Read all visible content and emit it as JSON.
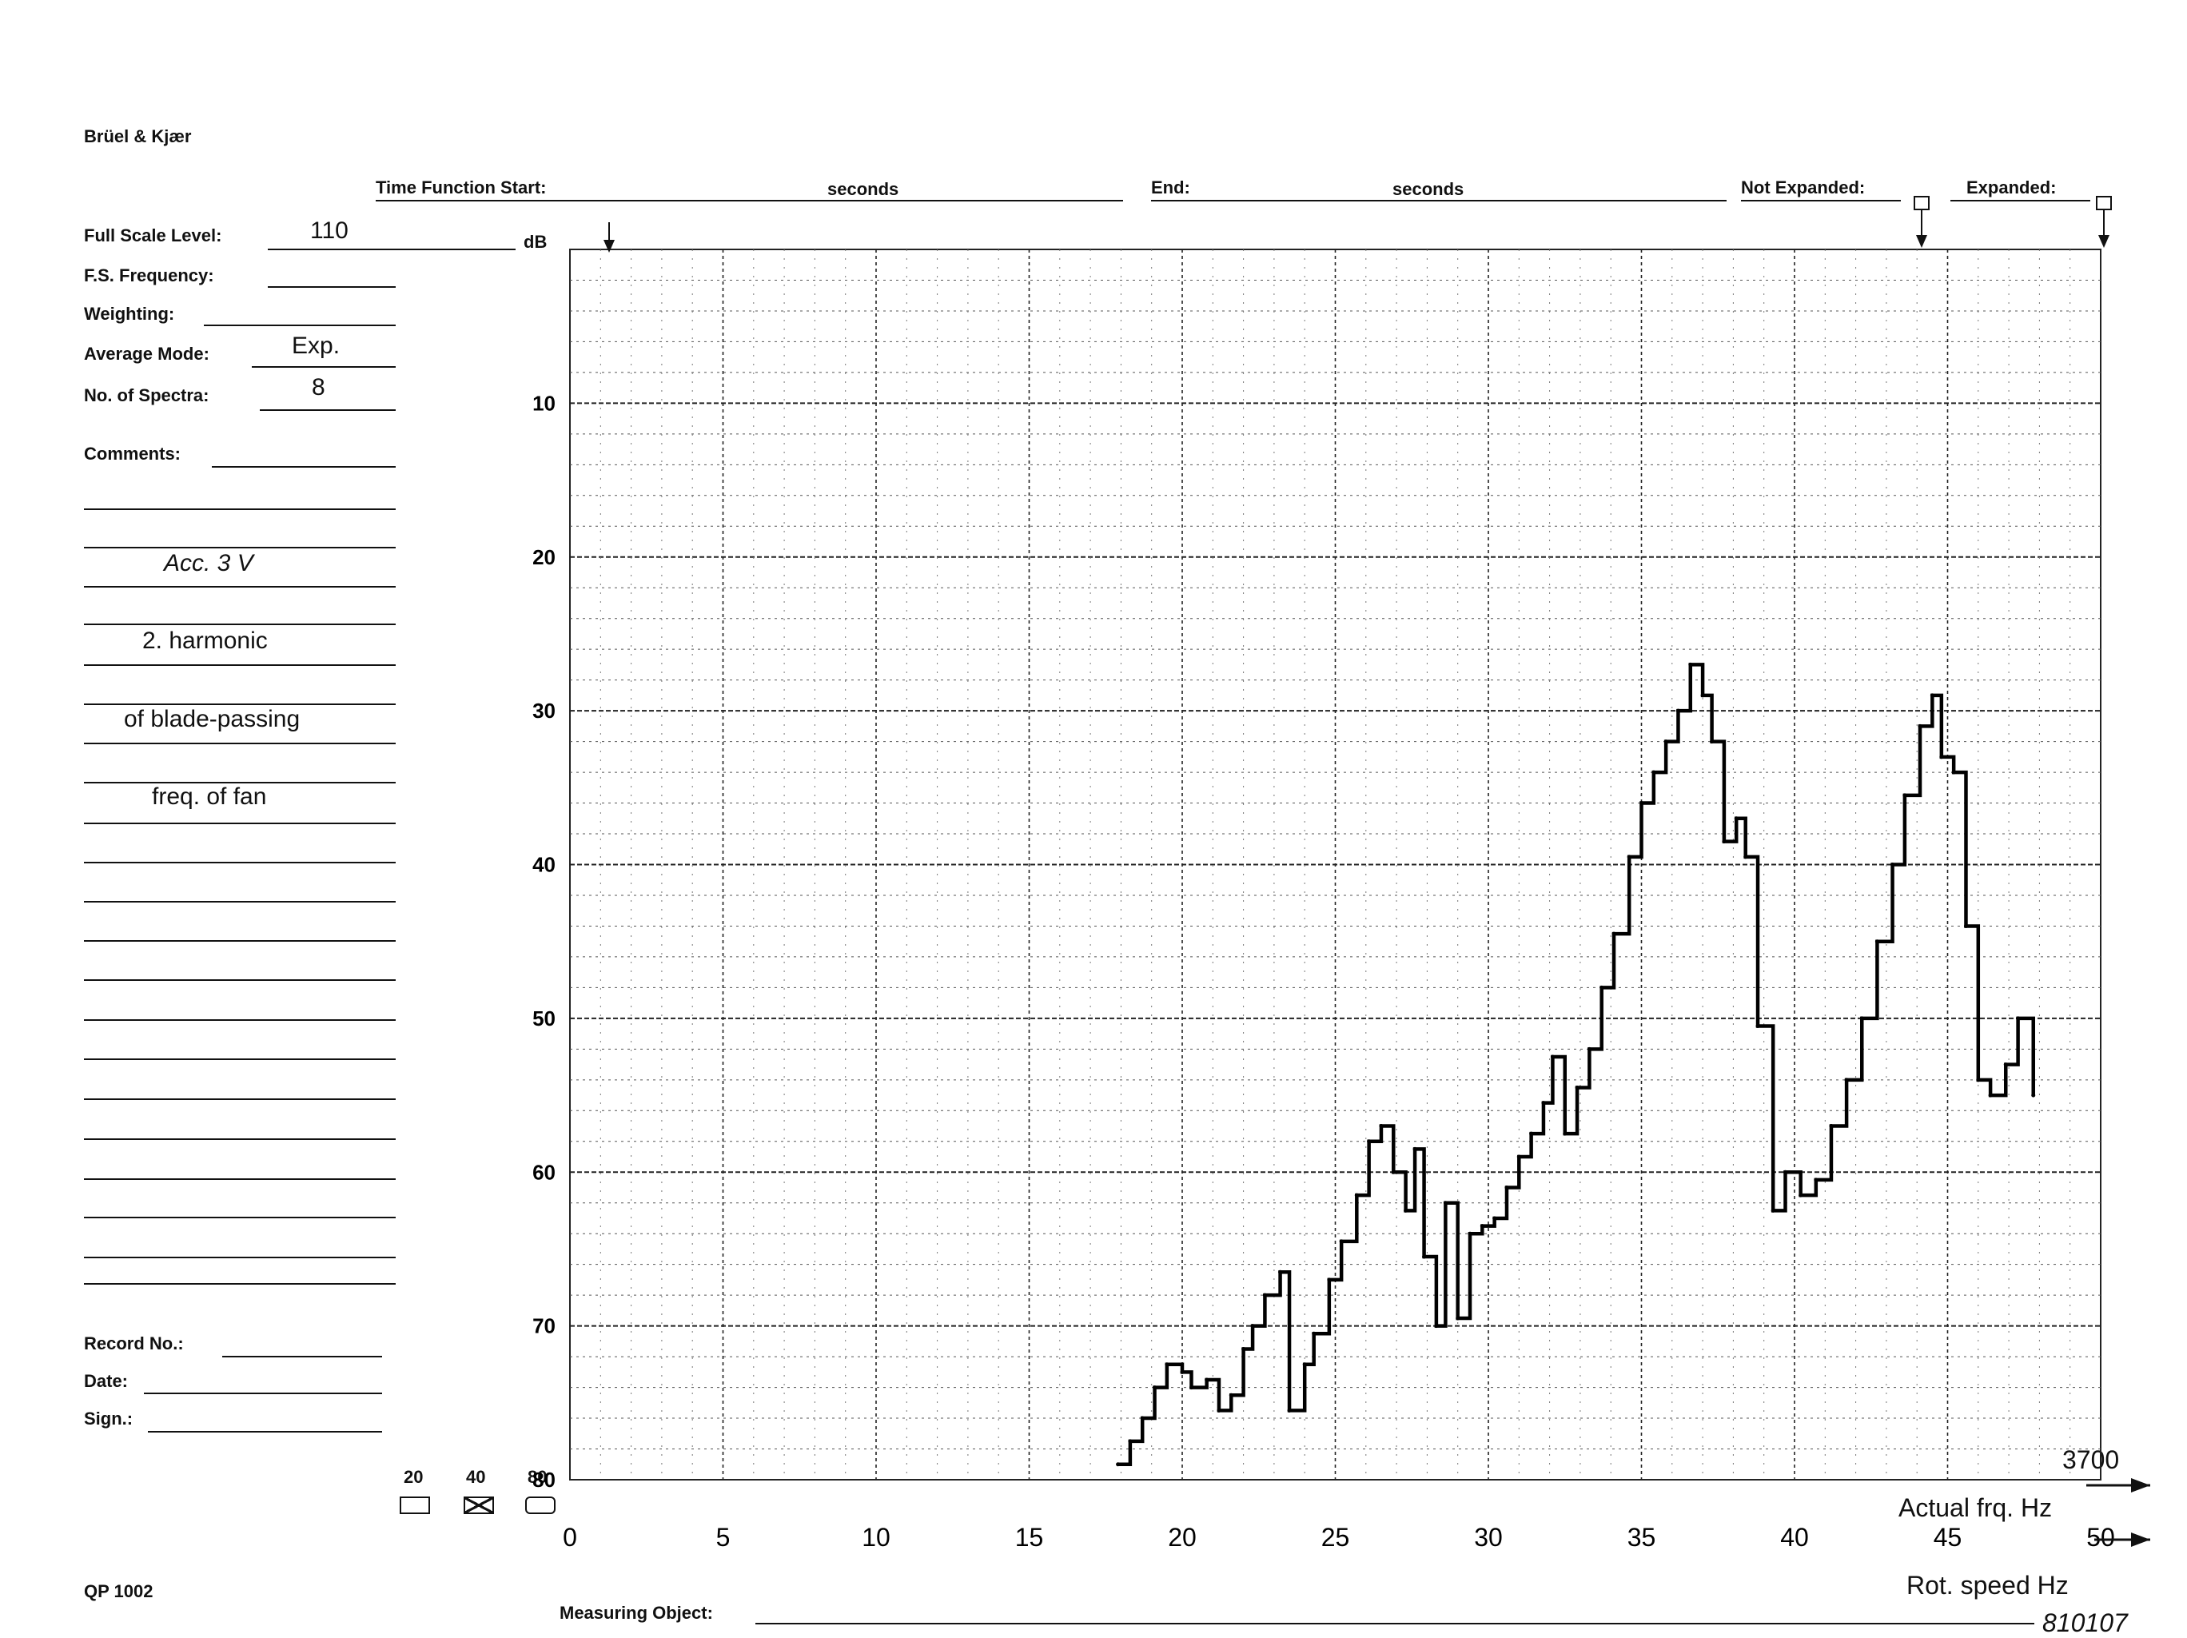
{
  "header": {
    "brand": "Brüel & Kjær",
    "time_function_start": "Time Function Start:",
    "seconds_1": "seconds",
    "end": "End:",
    "seconds_2": "seconds",
    "not_expanded": "Not Expanded:",
    "expanded": "Expanded:"
  },
  "form": {
    "full_scale_level_label": "Full Scale Level:",
    "full_scale_level_value": "110",
    "db_unit": "dB",
    "fs_frequency_label": "F.S. Frequency:",
    "weighting_label": "Weighting:",
    "average_mode_label": "Average Mode:",
    "average_mode_value": "Exp.",
    "no_of_spectra_label": "No. of Spectra:",
    "no_of_spectra_value": "8",
    "comments_label": "Comments:",
    "comment_lines": [
      "Acc. 3 V",
      "2. harmonic",
      "of blade-passing",
      "freq. of fan"
    ],
    "record_no_label": "Record No.:",
    "date_label": "Date:",
    "sign_label": "Sign.:"
  },
  "range_selector": {
    "options": [
      "20",
      "40",
      "80"
    ],
    "selected": "40"
  },
  "footer": {
    "form_code": "QP 1002",
    "measuring_object_label": "Measuring Object:",
    "ref_number": "810107"
  },
  "chart_data": {
    "type": "line",
    "title": "",
    "ylabel": "dB",
    "y_ticks": [
      "10",
      "20",
      "30",
      "40",
      "50",
      "60",
      "70",
      "80"
    ],
    "ylim": [
      0,
      80
    ],
    "y_inverted": true,
    "x_ticks": [
      "0",
      "5",
      "10",
      "15",
      "20",
      "25",
      "30",
      "35",
      "40",
      "45",
      "50"
    ],
    "xlim": [
      0,
      50
    ],
    "xlabel": "Rot. speed Hz",
    "xlabel_2": "Actual frq. Hz",
    "actual_frq_scale_end": "3700",
    "grid": true,
    "series": [
      {
        "x": [
          17.9,
          18.3,
          18.7,
          19.1,
          19.5,
          20.0,
          20.3,
          20.8,
          21.2,
          21.6,
          22.0,
          22.3,
          22.7,
          23.2,
          23.5,
          24.0,
          24.3,
          24.8,
          25.2,
          25.7,
          26.1,
          26.5,
          26.9,
          27.3,
          27.6,
          27.9,
          28.3,
          28.6,
          29.0,
          29.4,
          29.8,
          30.2,
          30.6,
          31.0,
          31.4,
          31.8,
          32.1,
          32.5,
          32.9,
          33.3,
          33.7,
          34.1,
          34.6,
          35.0,
          35.4,
          35.8,
          36.2,
          36.6,
          37.0,
          37.3,
          37.7,
          38.1,
          38.4,
          38.8,
          39.3,
          39.7,
          40.2,
          40.7,
          41.2,
          41.7,
          42.2,
          42.7,
          43.2,
          43.6,
          44.1,
          44.5,
          44.8,
          45.2,
          45.6,
          46.0,
          46.4,
          46.9,
          47.3,
          47.8
        ],
        "y": [
          79.0,
          77.5,
          76.0,
          74.0,
          72.5,
          73.0,
          74.0,
          73.5,
          75.5,
          74.5,
          71.5,
          70.0,
          68.0,
          66.5,
          75.5,
          72.5,
          70.5,
          67.0,
          64.5,
          61.5,
          58.0,
          57.0,
          60.0,
          62.5,
          58.5,
          65.5,
          70.0,
          62.0,
          69.5,
          64.0,
          63.5,
          63.0,
          61.0,
          59.0,
          57.5,
          55.5,
          52.5,
          57.5,
          54.5,
          52.0,
          48.0,
          44.5,
          39.5,
          36.0,
          34.0,
          32.0,
          30.0,
          27.0,
          29.0,
          32.0,
          38.5,
          37.0,
          39.5,
          50.5,
          62.5,
          60.0,
          61.5,
          60.5,
          57.0,
          54.0,
          50.0,
          45.0,
          40.0,
          35.5,
          31.0,
          29.0,
          33.0,
          34.0,
          44.0,
          54.0,
          55.0,
          53.0,
          50.0,
          55.0
        ]
      }
    ]
  }
}
